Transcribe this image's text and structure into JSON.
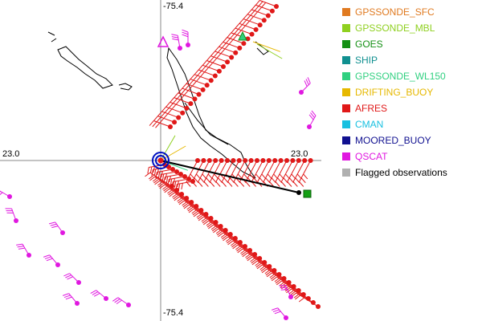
{
  "map": {
    "axis_labels": {
      "top_center": "-75.4",
      "bottom_center": "-75.4",
      "left_middle": "23.0",
      "right_middle": "23.0"
    }
  },
  "legend": {
    "items": [
      {
        "label": "GPSSONDE_SFC",
        "color": "#e07a20"
      },
      {
        "label": "GPSSONDE_MBL",
        "color": "#8fd020"
      },
      {
        "label": "GOES",
        "color": "#149014"
      },
      {
        "label": "SHIP",
        "color": "#109090"
      },
      {
        "label": "GPSSONDE_WL150",
        "color": "#30d080"
      },
      {
        "label": "DRIFTING_BUOY",
        "color": "#e6b800"
      },
      {
        "label": "AFRES",
        "color": "#e01818"
      },
      {
        "label": "CMAN",
        "color": "#18c0e0"
      },
      {
        "label": "MOORED_BUOY",
        "color": "#101090"
      },
      {
        "label": "QSCAT",
        "color": "#e018e0"
      },
      {
        "label": "Flagged observations",
        "color": "#b0b0b0"
      }
    ]
  }
}
